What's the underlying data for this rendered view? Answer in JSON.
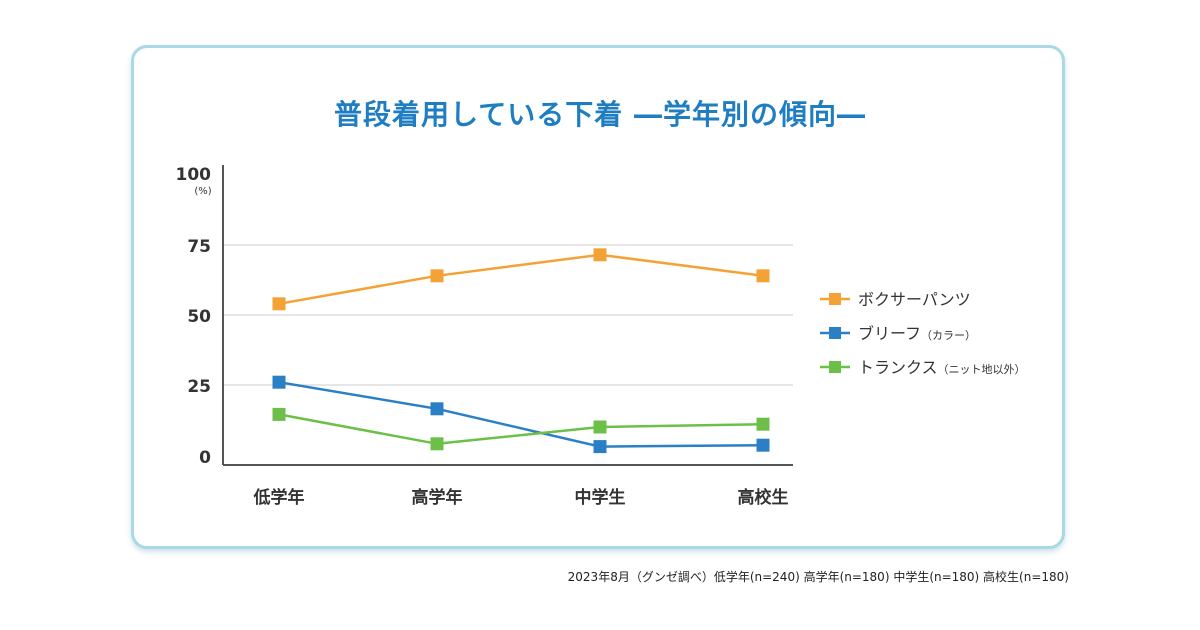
{
  "title": "普段着用している下着 ―学年別の傾向―",
  "footnote": "2023年8月（グンゼ調べ）低学年(n=240) 高学年(n=180) 中学生(n=180) 高校生(n=180)",
  "colors": {
    "title": "#1f7ec2",
    "card_border": "#a9d8e6",
    "axis": "#555555",
    "grid": "#dddddd"
  },
  "chart_data": {
    "type": "line",
    "title": "普段着用している下着 ―学年別の傾向―",
    "categories": [
      "低学年",
      "高学年",
      "中学生",
      "高校生"
    ],
    "y_unit": "(%)",
    "y_ticks": [
      0,
      25,
      50,
      75,
      100
    ],
    "ylim": [
      0,
      100
    ],
    "grid": true,
    "legend_position": "right",
    "series": [
      {
        "name": "ボクサーパンツ",
        "name_note": "",
        "color": "#f4a235",
        "values": [
          54,
          64,
          71.5,
          64
        ]
      },
      {
        "name": "ブリーフ",
        "name_note": "（カラー）",
        "color": "#2b80c5",
        "values": [
          26,
          16.5,
          3,
          3.5
        ]
      },
      {
        "name": "トランクス",
        "name_note": "（ニット地以外）",
        "color": "#6cc04a",
        "values": [
          14.5,
          4,
          10,
          11
        ]
      }
    ]
  }
}
